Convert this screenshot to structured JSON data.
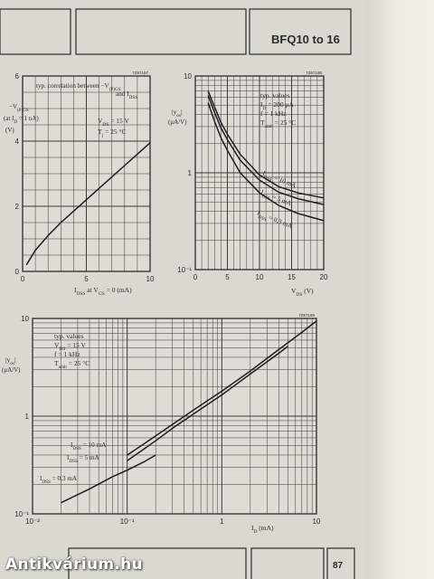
{
  "header": {
    "title": "BFQ10 to 16"
  },
  "page_number": "87",
  "watermark": "Antikvárium.hu",
  "colors": {
    "paper": "#d9d8d1",
    "ink": "#2b2b2b",
    "grid": "#3a3a3a"
  },
  "chart_data": [
    {
      "id": "tl",
      "type": "line",
      "code": "7Z67187",
      "title_line1": "typ. correlation between −V",
      "title_sub1": "(P)GS",
      "title_line2": "and I",
      "title_sub2": "DSS",
      "ylabel_lines": [
        "−V",
        "(P)GS",
        "(at I",
        "D",
        " = 1 nA)",
        "(V)"
      ],
      "cond1": "V",
      "cond1_sub": "DS",
      "cond1_val": " = 15 V",
      "cond2": "T",
      "cond2_sub": "j",
      "cond2_val": " = 25 °C",
      "xlabel": "I",
      "xlabel_sub1": "DSS",
      "xlabel_mid": " at V",
      "xlabel_sub2": "GS",
      "xlabel_end": " = 0 (mA)",
      "xlim": [
        0,
        10
      ],
      "ylim": [
        0,
        6
      ],
      "xticks": [
        "0",
        "5",
        "10"
      ],
      "yticks": [
        "0",
        "2",
        "4",
        "6"
      ],
      "series": [
        {
          "x": [
            0.3,
            1,
            2,
            3,
            4,
            5,
            6,
            7,
            8,
            9,
            10
          ],
          "y": [
            0.2,
            0.65,
            1.1,
            1.5,
            1.85,
            2.2,
            2.55,
            2.9,
            3.25,
            3.6,
            3.95
          ]
        }
      ]
    },
    {
      "id": "tr",
      "type": "line",
      "code": "7Z67186",
      "ylabel": "|y",
      "ylabel_sub": "os",
      "ylabel_end": "|",
      "yunit": "(μA/V)",
      "cond_title": "typ. values",
      "cond1": "I",
      "cond1_sub": "D",
      "cond1_val": " = 200 μA",
      "cond2": "f = 1 kHz",
      "cond3": "T",
      "cond3_sub": "amb",
      "cond3_val": " = 25 °C",
      "xlabel": "V",
      "xlabel_sub": "DS",
      "xlabel_end": " (V)",
      "xlim": [
        0,
        20
      ],
      "ylim": [
        0.1,
        10
      ],
      "yscale": "log",
      "xticks": [
        "0",
        "5",
        "10",
        "15",
        "20"
      ],
      "yticks": [
        "10⁻¹",
        "1",
        "10"
      ],
      "series": [
        {
          "prefix": "I",
          "sub": "DSS",
          "name": " = 10 mA",
          "x": [
            2,
            3,
            4,
            5,
            7,
            10,
            13,
            16,
            20
          ],
          "y": [
            7.0,
            4.8,
            3.3,
            2.5,
            1.55,
            0.95,
            0.72,
            0.62,
            0.55
          ]
        },
        {
          "prefix": "I",
          "sub": "DSS",
          "name": " = 5 mA",
          "x": [
            2,
            3,
            4,
            5,
            7,
            10,
            13,
            16,
            20
          ],
          "y": [
            6.3,
            4.2,
            2.9,
            2.2,
            1.35,
            0.84,
            0.63,
            0.54,
            0.47
          ]
        },
        {
          "prefix": "I",
          "sub": "DSS",
          "name": " = 0,3 mA",
          "x": [
            2,
            3,
            4,
            5,
            7,
            10,
            13,
            16,
            20
          ],
          "y": [
            5.3,
            3.4,
            2.3,
            1.7,
            1.0,
            0.62,
            0.46,
            0.38,
            0.32
          ]
        }
      ]
    },
    {
      "id": "bot",
      "type": "line",
      "code": "7Z67185",
      "ylabel": "|y",
      "ylabel_sub": "os",
      "ylabel_end": "|",
      "yunit": "(μA/V)",
      "cond_title": "typ. values",
      "cond1": "V",
      "cond1_sub": "DS",
      "cond1_val": " = 15 V",
      "cond2": "f = 1 kHz",
      "cond3": "T",
      "cond3_sub": "amb",
      "cond3_val": " = 25 °C",
      "xlabel": "I",
      "xlabel_sub": "D",
      "xlabel_end": " (mA)",
      "xlim": [
        0.01,
        10
      ],
      "ylim": [
        0.1,
        10
      ],
      "xscale": "log",
      "yscale": "log",
      "xticks": [
        "10⁻²",
        "10⁻¹",
        "1",
        "10"
      ],
      "yticks": [
        "10⁻¹",
        "1",
        "10"
      ],
      "series": [
        {
          "prefix": "I",
          "sub": "DSS",
          "name": " = 10 mA",
          "x": [
            0.1,
            0.15,
            0.2,
            0.3,
            0.5,
            1,
            2,
            4,
            7,
            10
          ],
          "y": [
            0.4,
            0.52,
            0.63,
            0.82,
            1.15,
            1.8,
            2.9,
            4.8,
            7.2,
            9.4
          ]
        },
        {
          "prefix": "I",
          "sub": "DSS",
          "name": " = 5 mA",
          "x": [
            0.1,
            0.15,
            0.2,
            0.3,
            0.5,
            1,
            2,
            4,
            5
          ],
          "y": [
            0.35,
            0.46,
            0.56,
            0.75,
            1.05,
            1.65,
            2.7,
            4.4,
            5.2
          ]
        },
        {
          "prefix": "I",
          "sub": "DSS",
          "name": " = 0,3 mA",
          "x": [
            0.02,
            0.04,
            0.07,
            0.1,
            0.15,
            0.2
          ],
          "y": [
            0.13,
            0.18,
            0.24,
            0.28,
            0.34,
            0.4
          ]
        }
      ]
    }
  ]
}
